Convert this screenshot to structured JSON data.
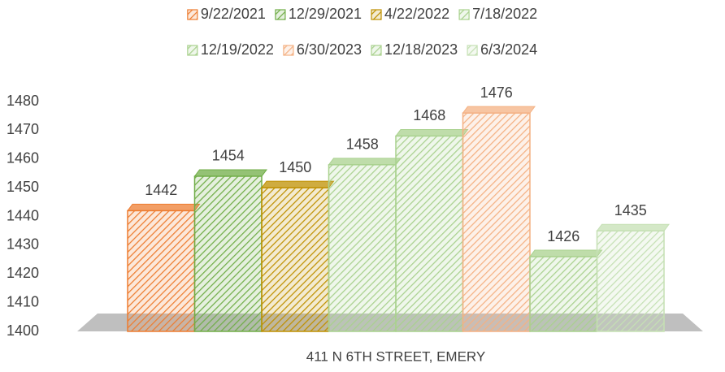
{
  "chart_data": {
    "type": "bar3d",
    "categories": [
      "411 N 6TH STREET, EMERY"
    ],
    "series": [
      {
        "name": "9/22/2021",
        "color": "#ed7d31",
        "values": [
          1442
        ]
      },
      {
        "name": "12/29/2021",
        "color": "#70ad47",
        "values": [
          1454
        ]
      },
      {
        "name": "4/22/2022",
        "color": "#bf9000",
        "values": [
          1450
        ]
      },
      {
        "name": "7/18/2022",
        "color": "#a9d18e",
        "values": [
          1458
        ]
      },
      {
        "name": "12/19/2022",
        "color": "#a9d18e",
        "values": [
          1468
        ]
      },
      {
        "name": "6/30/2023",
        "color": "#f4b183",
        "values": [
          1476
        ]
      },
      {
        "name": "12/18/2023",
        "color": "#a9d18e",
        "values": [
          1426
        ]
      },
      {
        "name": "6/3/2024",
        "color": "#c5e0b4",
        "values": [
          1435
        ]
      }
    ],
    "ylim": [
      1400,
      1480
    ],
    "yticks": [
      1400,
      1410,
      1420,
      1430,
      1440,
      1450,
      1460,
      1470,
      1480
    ],
    "legend": "top"
  }
}
